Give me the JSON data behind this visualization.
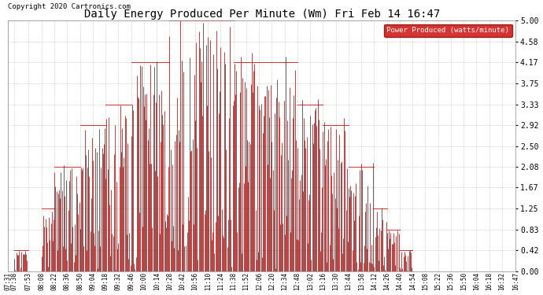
{
  "title": "Daily Energy Produced Per Minute (Wm) Fri Feb 14 16:47",
  "copyright": "Copyright 2020 Cartronics.com",
  "legend_label": "Power Produced (watts/minute)",
  "legend_bg": "#cc0000",
  "legend_text_color": "#ffffff",
  "line_color": "#cc0000",
  "dark_line_color": "#333333",
  "bg_color": "#ffffff",
  "grid_color": "#bbbbbb",
  "title_color": "#000000",
  "ylim": [
    0,
    5.0
  ],
  "yticks": [
    0.0,
    0.42,
    0.83,
    1.25,
    1.67,
    2.08,
    2.5,
    2.92,
    3.33,
    3.75,
    4.17,
    4.58,
    5.0
  ],
  "xtick_labels": [
    "07:31",
    "07:38",
    "07:53",
    "08:08",
    "08:22",
    "08:36",
    "08:50",
    "09:04",
    "09:18",
    "09:32",
    "09:46",
    "10:00",
    "10:14",
    "10:28",
    "10:42",
    "10:56",
    "11:10",
    "11:24",
    "11:38",
    "11:52",
    "12:06",
    "12:20",
    "12:34",
    "12:48",
    "13:02",
    "13:16",
    "13:30",
    "13:44",
    "13:58",
    "14:12",
    "14:26",
    "14:40",
    "14:54",
    "15:08",
    "15:22",
    "15:36",
    "15:50",
    "16:04",
    "16:18",
    "16:32",
    "16:47"
  ],
  "base_values": [
    0.0,
    0.42,
    0.0,
    1.25,
    2.08,
    2.08,
    2.92,
    2.92,
    3.33,
    3.33,
    4.17,
    4.17,
    4.17,
    5.0,
    5.0,
    5.0,
    5.0,
    5.0,
    4.17,
    4.17,
    4.17,
    4.17,
    4.17,
    3.33,
    3.33,
    2.92,
    2.92,
    2.08,
    2.08,
    1.25,
    0.83,
    0.42,
    0.0,
    0.0,
    0.0,
    0.0,
    0.0,
    0.0,
    0.0,
    0.0,
    0.0
  ]
}
